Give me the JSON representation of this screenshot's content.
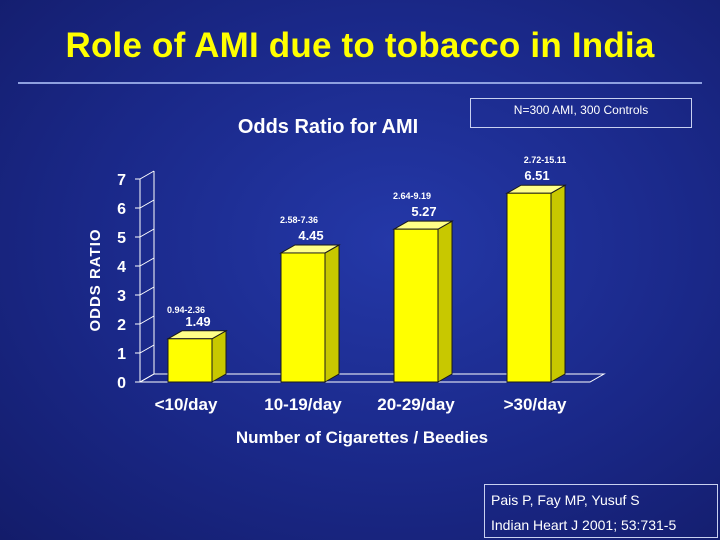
{
  "slide": {
    "title": "Role of AMI due to tobacco in India",
    "sample_note": "N=300 AMI, 300 Controls",
    "reference": [
      "Pais P, Fay MP, Yusuf S",
      "Indian Heart J 2001; 53:731-5"
    ]
  },
  "colors": {
    "background": "#1c2a8c",
    "title": "#ffff00",
    "bar_front": "#ffff00",
    "bar_side": "#c8c800",
    "bar_top": "#ffff88",
    "text": "#ffffff"
  },
  "chart_data": {
    "type": "bar",
    "style": "3d",
    "title": "Odds Ratio for AMI",
    "xlabel": "Number of Cigarettes / Beedies",
    "ylabel": "ODDS RATIO",
    "ylim": [
      0,
      7
    ],
    "yticks": [
      "0",
      "1",
      "2",
      "3",
      "4",
      "5",
      "6",
      "7"
    ],
    "categories": [
      "<10/day",
      "10-19/day",
      "20-29/day",
      ">30/day"
    ],
    "values": [
      1.49,
      4.45,
      5.27,
      6.51
    ],
    "value_labels": [
      "1.49",
      "4.45",
      "5.27",
      "6.51"
    ],
    "ci_labels": [
      "0.94-2.36",
      "2.58-7.36",
      "2.64-9.19",
      "2.72-15.11"
    ],
    "grid": false,
    "legend": "none"
  }
}
